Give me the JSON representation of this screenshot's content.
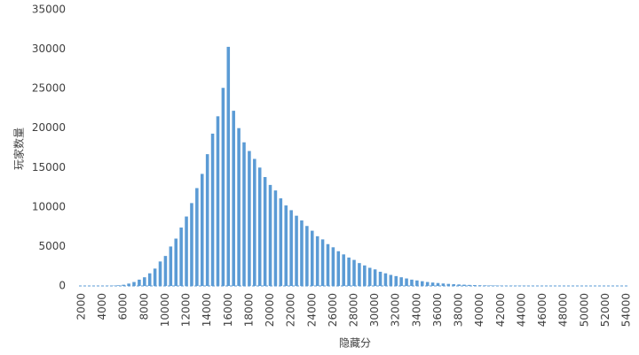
{
  "chart_data": {
    "type": "bar",
    "x_label": "隐藏分",
    "y_label": "玩家数量",
    "categories": [
      "2000",
      null,
      null,
      null,
      "4000",
      null,
      null,
      null,
      "6000",
      null,
      null,
      null,
      "8000",
      null,
      null,
      null,
      "10000",
      null,
      null,
      null,
      "12000",
      null,
      null,
      null,
      "14000",
      null,
      null,
      null,
      "16000",
      null,
      null,
      null,
      "18000",
      null,
      null,
      null,
      "20000",
      null,
      null,
      null,
      "22000",
      null,
      null,
      null,
      "24000",
      null,
      null,
      null,
      "26000",
      null,
      null,
      null,
      "28000",
      null,
      null,
      null,
      "30000",
      null,
      null,
      null,
      "32000",
      null,
      null,
      null,
      "34000",
      null,
      null,
      null,
      "36000",
      null,
      null,
      null,
      "38000",
      null,
      null,
      null,
      "40000",
      null,
      null,
      null,
      "42000",
      null,
      null,
      null,
      "44000",
      null,
      null,
      null,
      "46000",
      null,
      null,
      null,
      "48000",
      null,
      null,
      null,
      "50000",
      null,
      null,
      null,
      "52000",
      null,
      null,
      null,
      "54000"
    ],
    "values": [
      1,
      2,
      3,
      5,
      10,
      20,
      40,
      80,
      150,
      300,
      500,
      800,
      1100,
      1600,
      2200,
      3100,
      3800,
      5000,
      6000,
      7400,
      8800,
      10500,
      12400,
      14200,
      16700,
      19300,
      21500,
      25100,
      30300,
      22200,
      20000,
      18200,
      17100,
      16100,
      15000,
      13800,
      12800,
      12100,
      11100,
      10200,
      9600,
      8900,
      8300,
      7600,
      7000,
      6300,
      5900,
      5300,
      4900,
      4400,
      4000,
      3600,
      3300,
      2900,
      2600,
      2300,
      2100,
      1800,
      1600,
      1400,
      1250,
      1100,
      950,
      800,
      700,
      600,
      500,
      430,
      370,
      310,
      260,
      220,
      190,
      160,
      130,
      110,
      90,
      75,
      60,
      50,
      40,
      33,
      27,
      22,
      18,
      15,
      12,
      10,
      8,
      7,
      6,
      5,
      4,
      3,
      3,
      2,
      2,
      2,
      1,
      1,
      1,
      1,
      1,
      1,
      1
    ],
    "color": "#5b9bd5",
    "ylim": [
      0,
      35000
    ],
    "yticks": [
      0,
      5000,
      10000,
      15000,
      20000,
      25000,
      30000,
      35000
    ],
    "grid": false
  }
}
